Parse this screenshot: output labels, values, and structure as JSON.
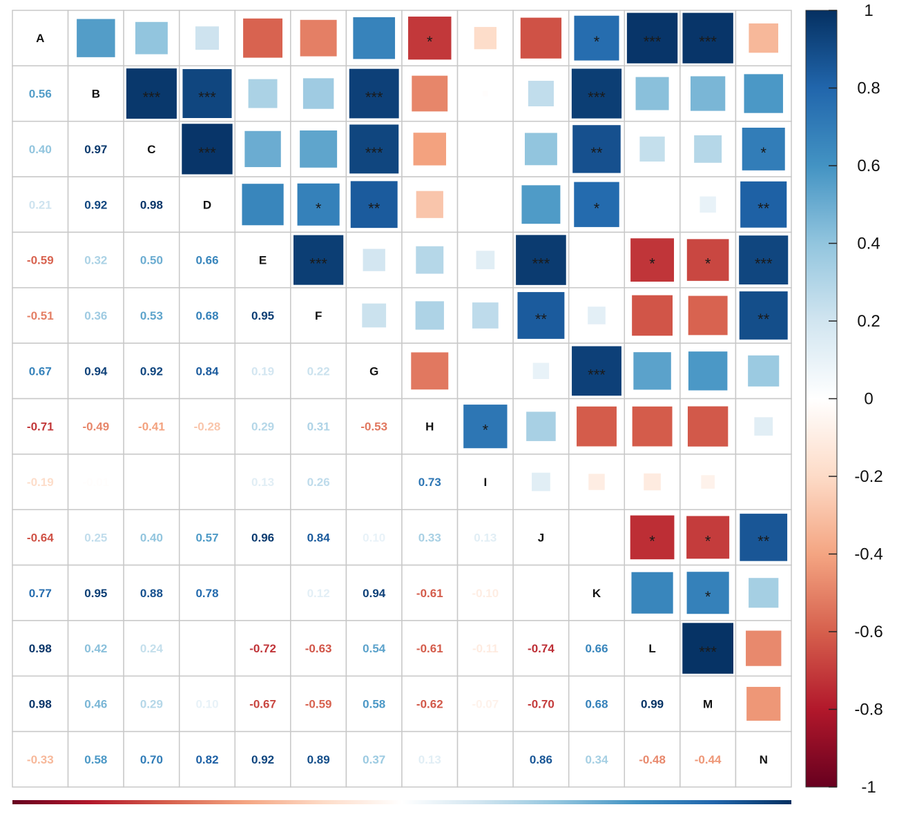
{
  "chart_data": {
    "type": "heatmap",
    "variables": [
      "A",
      "B",
      "C",
      "D",
      "E",
      "F",
      "G",
      "H",
      "I",
      "J",
      "K",
      "L",
      "M",
      "N"
    ],
    "lower_triangle_values": [
      [],
      [
        "0.56"
      ],
      [
        "0.40",
        "0.97"
      ],
      [
        "0.21",
        "0.92",
        "0.98"
      ],
      [
        "-0.59",
        "0.32",
        "0.50",
        "0.66"
      ],
      [
        "-0.51",
        "0.36",
        "0.53",
        "0.68",
        "0.95"
      ],
      [
        "0.67",
        "0.94",
        "0.92",
        "0.84",
        "0.19",
        "0.22"
      ],
      [
        "-0.71",
        "-0.49",
        "-0.41",
        "-0.28",
        "0.29",
        "0.31",
        "-0.53"
      ],
      [
        "-0.19",
        "-0.01",
        "",
        "",
        "0.13",
        "0.26",
        "",
        "0.73"
      ],
      [
        "-0.64",
        "0.25",
        "0.40",
        "0.57",
        "0.96",
        "0.84",
        "0.10",
        "0.33",
        "0.13"
      ],
      [
        "0.77",
        "0.95",
        "0.88",
        "0.78",
        "",
        "0.12",
        "0.94",
        "-0.61",
        "-0.10",
        ""
      ],
      [
        "0.98",
        "0.42",
        "0.24",
        "",
        "-0.72",
        "-0.63",
        "0.54",
        "-0.61",
        "-0.11",
        "-0.74",
        "0.66"
      ],
      [
        "0.98",
        "0.46",
        "0.29",
        "0.10",
        "-0.67",
        "-0.59",
        "0.58",
        "-0.62",
        "-0.07",
        "-0.70",
        "0.68",
        "0.99"
      ],
      [
        "-0.33",
        "0.58",
        "0.70",
        "0.82",
        "0.92",
        "0.89",
        "0.37",
        "0.13",
        "",
        "0.86",
        "0.34",
        "-0.48",
        "-0.44"
      ]
    ],
    "upper_triangle_values": [
      [
        null,
        0.56,
        0.4,
        0.21,
        -0.59,
        -0.51,
        0.67,
        -0.71,
        -0.19,
        -0.64,
        0.77,
        0.98,
        0.98,
        -0.33
      ],
      [
        null,
        null,
        0.97,
        0.92,
        0.32,
        0.36,
        0.94,
        -0.49,
        -0.01,
        0.25,
        0.95,
        0.42,
        0.46,
        0.58
      ],
      [
        null,
        null,
        null,
        0.98,
        0.5,
        0.53,
        0.92,
        -0.41,
        0.0,
        0.4,
        0.88,
        0.24,
        0.29,
        0.7
      ],
      [
        null,
        null,
        null,
        null,
        0.66,
        0.68,
        0.84,
        -0.28,
        0.0,
        0.57,
        0.78,
        0.0,
        0.1,
        0.82
      ],
      [
        null,
        null,
        null,
        null,
        null,
        0.95,
        0.19,
        0.29,
        0.13,
        0.96,
        0.0,
        -0.72,
        -0.67,
        0.92
      ],
      [
        null,
        null,
        null,
        null,
        null,
        null,
        0.22,
        0.31,
        0.26,
        0.84,
        0.12,
        -0.63,
        -0.59,
        0.89
      ],
      [
        null,
        null,
        null,
        null,
        null,
        null,
        null,
        -0.53,
        0.0,
        0.1,
        0.94,
        0.54,
        0.58,
        0.37
      ],
      [
        null,
        null,
        null,
        null,
        null,
        null,
        null,
        null,
        0.73,
        0.33,
        -0.61,
        -0.61,
        -0.62,
        0.13
      ],
      [
        null,
        null,
        null,
        null,
        null,
        null,
        null,
        null,
        null,
        0.13,
        -0.1,
        -0.11,
        -0.07,
        0.0
      ],
      [
        null,
        null,
        null,
        null,
        null,
        null,
        null,
        null,
        null,
        null,
        0.0,
        -0.74,
        -0.7,
        0.86
      ],
      [
        null,
        null,
        null,
        null,
        null,
        null,
        null,
        null,
        null,
        null,
        null,
        0.66,
        0.68,
        0.34
      ],
      [
        null,
        null,
        null,
        null,
        null,
        null,
        null,
        null,
        null,
        null,
        null,
        null,
        0.99,
        -0.48
      ],
      [
        null,
        null,
        null,
        null,
        null,
        null,
        null,
        null,
        null,
        null,
        null,
        null,
        null,
        -0.44
      ],
      [
        null,
        null,
        null,
        null,
        null,
        null,
        null,
        null,
        null,
        null,
        null,
        null,
        null,
        null
      ]
    ],
    "significance": [
      [
        "",
        "",
        "",
        "",
        "",
        "",
        "",
        "*",
        "",
        "",
        "*",
        "***",
        "***",
        ""
      ],
      [
        "",
        "",
        "***",
        "***",
        "",
        "",
        "***",
        "",
        "",
        "",
        "***",
        "",
        "",
        ""
      ],
      [
        "",
        "",
        "",
        "***",
        "",
        "",
        "***",
        "",
        "",
        "",
        "**",
        "",
        "",
        "*"
      ],
      [
        "",
        "",
        "",
        "",
        "",
        "*",
        "**",
        "",
        "",
        "",
        "*",
        "",
        "",
        "**"
      ],
      [
        "",
        "",
        "",
        "",
        "",
        "***",
        "",
        "",
        "",
        "***",
        "",
        "*",
        "*",
        "***"
      ],
      [
        "",
        "",
        "",
        "",
        "",
        "",
        "",
        "",
        "",
        "**",
        "",
        "",
        "",
        "**"
      ],
      [
        "",
        "",
        "",
        "",
        "",
        "",
        "",
        "",
        "",
        "",
        "***",
        "",
        "",
        ""
      ],
      [
        "",
        "",
        "",
        "",
        "",
        "",
        "",
        "",
        "*",
        "",
        "",
        "",
        "",
        ""
      ],
      [
        "",
        "",
        "",
        "",
        "",
        "",
        "",
        "",
        "",
        "",
        "",
        "",
        "",
        ""
      ],
      [
        "",
        "",
        "",
        "",
        "",
        "",
        "",
        "",
        "",
        "",
        "",
        "*",
        "*",
        "**"
      ],
      [
        "",
        "",
        "",
        "",
        "",
        "",
        "",
        "",
        "",
        "",
        "",
        "",
        "*",
        ""
      ],
      [
        "",
        "",
        "",
        "",
        "",
        "",
        "",
        "",
        "",
        "",
        "",
        "",
        "***",
        ""
      ],
      [
        "",
        "",
        "",
        "",
        "",
        "",
        "",
        "",
        "",
        "",
        "",
        "",
        "",
        ""
      ],
      [
        "",
        "",
        "",
        "",
        "",
        "",
        "",
        "",
        "",
        "",
        "",
        "",
        "",
        ""
      ]
    ],
    "colorbar": {
      "range": [
        -1,
        1
      ],
      "ticks": [
        "1",
        "0.8",
        "0.6",
        "0.4",
        "0.2",
        "0",
        "-0.2",
        "-0.4",
        "-0.6",
        "-0.8",
        "-1"
      ],
      "low_color": "#67001f",
      "mid_color": "#ffffff",
      "high_color": "#053061"
    },
    "legend_position": "right"
  }
}
